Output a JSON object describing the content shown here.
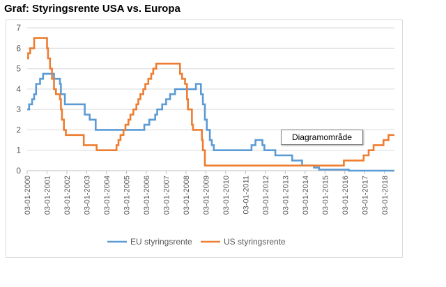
{
  "page": {
    "title": "Graf: Styringsrente USA vs. Europa"
  },
  "tooltip": {
    "text": "Diagramområde"
  },
  "chart_data": {
    "type": "line",
    "title": "Graf: Styringsrente USA vs. Europa",
    "xlabel": "",
    "ylabel": "",
    "ylim": [
      0,
      7
    ],
    "yticks": [
      "0",
      "1",
      "2",
      "3",
      "4",
      "5",
      "6",
      "7"
    ],
    "xlim": [
      2000.0,
      2018.5
    ],
    "xticks": [
      {
        "label": "03-01-2000",
        "value": 2000.0
      },
      {
        "label": "03-01-2001",
        "value": 2001.0
      },
      {
        "label": "03-01-2002",
        "value": 2002.0
      },
      {
        "label": "03-01-2003",
        "value": 2003.0
      },
      {
        "label": "03-01-2004",
        "value": 2004.0
      },
      {
        "label": "03-01-2005",
        "value": 2005.0
      },
      {
        "label": "03-01-2006",
        "value": 2006.0
      },
      {
        "label": "03-01-2007",
        "value": 2007.0
      },
      {
        "label": "03-01-2008",
        "value": 2008.0
      },
      {
        "label": "03-01-2009",
        "value": 2009.0
      },
      {
        "label": "03-01-2010",
        "value": 2010.0
      },
      {
        "label": "03-01-2011",
        "value": 2011.0
      },
      {
        "label": "03-01-2012",
        "value": 2012.0
      },
      {
        "label": "03-01-2013",
        "value": 2013.0
      },
      {
        "label": "03-01-2014",
        "value": 2014.0
      },
      {
        "label": "03-01-2015",
        "value": 2015.0
      },
      {
        "label": "03-01-2016",
        "value": 2016.0
      },
      {
        "label": "03-01-2017",
        "value": 2017.0
      },
      {
        "label": "03-01-2018",
        "value": 2018.0
      }
    ],
    "grid": true,
    "legend_position": "bottom",
    "series": [
      {
        "name": "EU styringsrente",
        "color": "#5b9bd5",
        "points": [
          [
            2000.0,
            3.0
          ],
          [
            2000.1,
            3.25
          ],
          [
            2000.25,
            3.5
          ],
          [
            2000.35,
            3.75
          ],
          [
            2000.45,
            4.25
          ],
          [
            2000.65,
            4.5
          ],
          [
            2000.8,
            4.75
          ],
          [
            2001.35,
            4.5
          ],
          [
            2001.65,
            4.25
          ],
          [
            2001.7,
            3.75
          ],
          [
            2001.9,
            3.25
          ],
          [
            2002.9,
            2.75
          ],
          [
            2003.15,
            2.5
          ],
          [
            2003.45,
            2.0
          ],
          [
            2005.9,
            2.25
          ],
          [
            2006.15,
            2.5
          ],
          [
            2006.45,
            2.75
          ],
          [
            2006.55,
            3.0
          ],
          [
            2006.8,
            3.25
          ],
          [
            2007.0,
            3.5
          ],
          [
            2007.2,
            3.75
          ],
          [
            2007.45,
            4.0
          ],
          [
            2008.5,
            4.25
          ],
          [
            2008.75,
            3.75
          ],
          [
            2008.85,
            3.25
          ],
          [
            2008.95,
            2.5
          ],
          [
            2009.05,
            2.0
          ],
          [
            2009.2,
            1.5
          ],
          [
            2009.3,
            1.25
          ],
          [
            2009.4,
            1.0
          ],
          [
            2011.3,
            1.25
          ],
          [
            2011.5,
            1.5
          ],
          [
            2011.85,
            1.25
          ],
          [
            2011.95,
            1.0
          ],
          [
            2012.5,
            0.75
          ],
          [
            2013.35,
            0.5
          ],
          [
            2013.85,
            0.25
          ],
          [
            2014.45,
            0.15
          ],
          [
            2014.7,
            0.05
          ],
          [
            2016.2,
            0.0
          ],
          [
            2018.5,
            0.0
          ]
        ]
      },
      {
        "name": "US styringsrente",
        "color": "#ed7d31",
        "points": [
          [
            2000.0,
            5.5
          ],
          [
            2000.05,
            5.75
          ],
          [
            2000.15,
            6.0
          ],
          [
            2000.35,
            6.5
          ],
          [
            2001.0,
            6.0
          ],
          [
            2001.05,
            5.5
          ],
          [
            2001.15,
            5.0
          ],
          [
            2001.25,
            4.5
          ],
          [
            2001.35,
            4.0
          ],
          [
            2001.45,
            3.75
          ],
          [
            2001.65,
            3.5
          ],
          [
            2001.7,
            3.0
          ],
          [
            2001.75,
            2.5
          ],
          [
            2001.85,
            2.0
          ],
          [
            2001.95,
            1.75
          ],
          [
            2002.85,
            1.25
          ],
          [
            2003.5,
            1.0
          ],
          [
            2004.5,
            1.25
          ],
          [
            2004.6,
            1.5
          ],
          [
            2004.7,
            1.75
          ],
          [
            2004.85,
            2.0
          ],
          [
            2004.95,
            2.25
          ],
          [
            2005.1,
            2.5
          ],
          [
            2005.2,
            2.75
          ],
          [
            2005.35,
            3.0
          ],
          [
            2005.5,
            3.25
          ],
          [
            2005.6,
            3.5
          ],
          [
            2005.7,
            3.75
          ],
          [
            2005.85,
            4.0
          ],
          [
            2005.95,
            4.25
          ],
          [
            2006.1,
            4.5
          ],
          [
            2006.25,
            4.75
          ],
          [
            2006.35,
            5.0
          ],
          [
            2006.5,
            5.25
          ],
          [
            2007.7,
            4.75
          ],
          [
            2007.8,
            4.5
          ],
          [
            2007.95,
            4.25
          ],
          [
            2008.05,
            3.5
          ],
          [
            2008.1,
            3.0
          ],
          [
            2008.3,
            2.25
          ],
          [
            2008.35,
            2.0
          ],
          [
            2008.8,
            1.5
          ],
          [
            2008.85,
            1.0
          ],
          [
            2008.95,
            0.25
          ],
          [
            2015.95,
            0.5
          ],
          [
            2016.95,
            0.75
          ],
          [
            2017.2,
            1.0
          ],
          [
            2017.45,
            1.25
          ],
          [
            2017.95,
            1.5
          ],
          [
            2018.2,
            1.75
          ],
          [
            2018.5,
            1.75
          ]
        ]
      }
    ]
  }
}
